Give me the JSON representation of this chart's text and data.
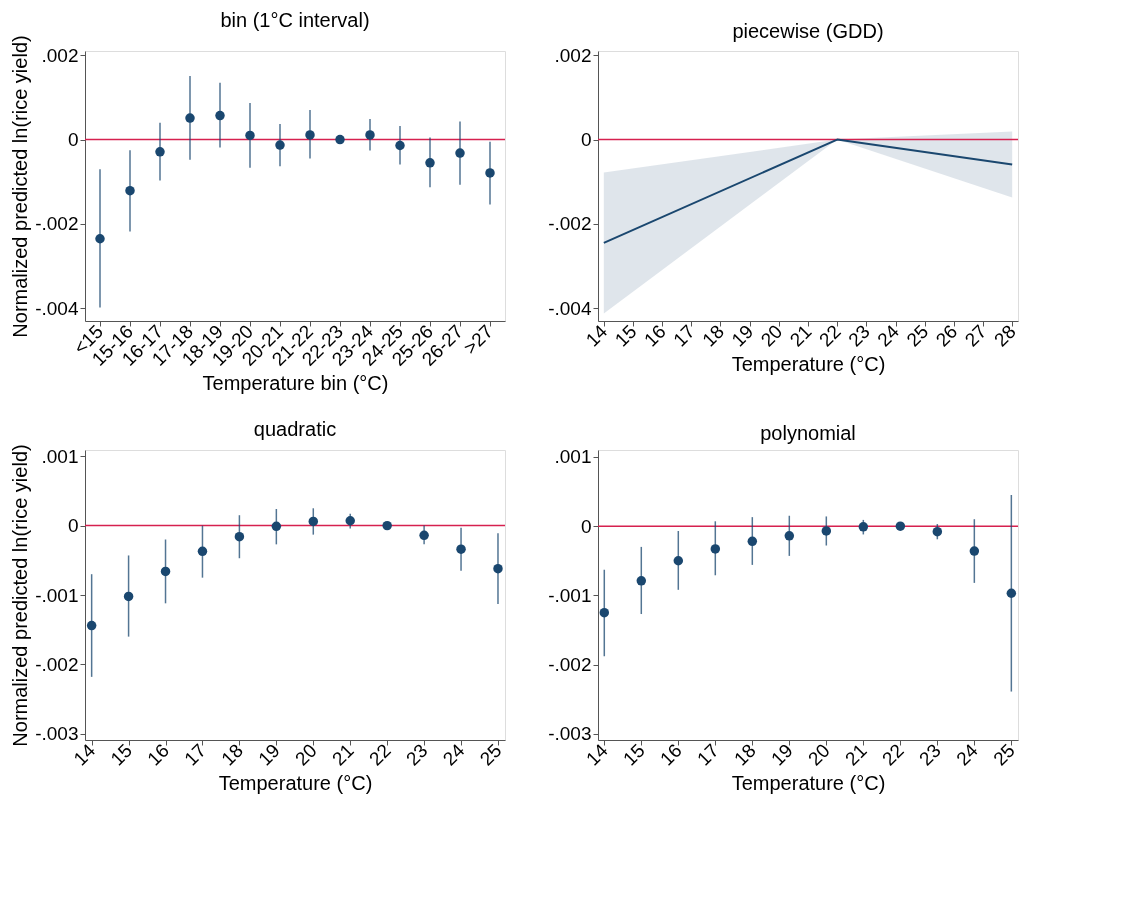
{
  "chart_data": [
    {
      "type": "scatter",
      "title": "bin (1°C interval)",
      "xlabel": "Temperature bin (°C)",
      "ylabel": "Normalized predicted ln(rice yield)",
      "categories": [
        "<15",
        "15-16",
        "16-17",
        "17-18",
        "18-19",
        "19-20",
        "20-21",
        "21-22",
        "22-23",
        "23-24",
        "24-25",
        "25-26",
        "26-27",
        ">27"
      ],
      "series": [
        {
          "color": "#1a476f",
          "values": [
            -0.00235,
            -0.00121,
            -0.00029,
            0.00051,
            0.00057,
            0.0001,
            -0.00013,
            0.00011,
            0,
            0.00011,
            -0.00014,
            -0.00055,
            -0.00032,
            -0.00079
          ],
          "errors": [
            [
              -0.00398,
              -0.0007
            ],
            [
              -0.00218,
              -0.00025
            ],
            [
              -0.00097,
              0.0004
            ],
            [
              -0.00048,
              0.00151
            ],
            [
              -0.00019,
              0.00135
            ],
            [
              -0.00067,
              0.00087
            ],
            [
              -0.00063,
              0.00037
            ],
            [
              -0.00045,
              0.0007
            ],
            null,
            [
              -0.00026,
              0.00049
            ],
            [
              -0.00059,
              0.00032
            ],
            [
              -0.00113,
              5e-05
            ],
            [
              -0.00107,
              0.00043
            ],
            [
              -0.00154,
              -5e-05
            ]
          ]
        }
      ],
      "ylim": [
        -0.0043,
        0.0021
      ],
      "yticks": [
        {
          "value": -0.004,
          "label": "-.004"
        },
        {
          "value": -0.002,
          "label": "-.002"
        },
        0,
        {
          "value": 0.002,
          "label": ".002"
        }
      ],
      "ref_lines": [
        {
          "axis": "y",
          "value": 0,
          "color": "#d6214f"
        }
      ],
      "marker": "circle",
      "grid": false
    },
    {
      "type": "line",
      "title": "piecewise (GDD)",
      "xlabel": "Temperature (°C)",
      "series": [
        {
          "color": "#1a476f",
          "x": [
            14,
            22,
            28
          ],
          "values": [
            -0.00245,
            0,
            -0.00059
          ],
          "lower": [
            -0.00412,
            0,
            -0.00137
          ],
          "upper": [
            -0.00078,
            0,
            0.00019
          ]
        }
      ],
      "xlim": [
        13.8,
        28.2
      ],
      "xticks": [
        14,
        15,
        16,
        17,
        18,
        19,
        20,
        21,
        22,
        23,
        24,
        25,
        26,
        27,
        28
      ],
      "ylim": [
        -0.0043,
        0.0021
      ],
      "yticks": [
        {
          "value": -0.004,
          "label": "-.004"
        },
        {
          "value": -0.002,
          "label": "-.002"
        },
        0,
        {
          "value": 0.002,
          "label": ".002"
        }
      ],
      "ref_lines": [
        {
          "axis": "y",
          "value": 0,
          "color": "#d6214f"
        }
      ],
      "marker": "none",
      "grid": false
    },
    {
      "type": "scatter",
      "title": "quadratic",
      "xlabel": "Temperature (°C)",
      "ylabel": "Normalized predicted ln(rice yield)",
      "x": [
        14,
        15,
        16,
        17,
        18,
        19,
        20,
        21,
        22,
        23,
        24,
        25
      ],
      "series": [
        {
          "color": "#1a476f",
          "values": [
            -0.00144,
            -0.00102,
            -0.00066,
            -0.00037,
            -0.00016,
            -1e-05,
            6e-05,
            7e-05,
            0,
            -0.00014,
            -0.00034,
            -0.00062
          ],
          "errors": [
            [
              -0.00218,
              -0.0007
            ],
            [
              -0.0016,
              -0.00043
            ],
            [
              -0.00112,
              -0.0002
            ],
            [
              -0.00075,
              0
            ],
            [
              -0.00047,
              0.00015
            ],
            [
              -0.00027,
              0.00024
            ],
            [
              -0.00013,
              0.00025
            ],
            [
              -4e-05,
              0.00017
            ],
            null,
            [
              -0.00027,
              0
            ],
            [
              -0.00065,
              -3e-05
            ],
            [
              -0.00113,
              -0.00011
            ]
          ]
        }
      ],
      "xlim": [
        13.82,
        25.19
      ],
      "xticks": [
        14,
        15,
        16,
        17,
        18,
        19,
        20,
        21,
        22,
        23,
        24,
        25
      ],
      "ylim": [
        -0.00309,
        0.00109
      ],
      "yticks": [
        {
          "value": -0.003,
          "label": "-.003"
        },
        {
          "value": -0.002,
          "label": "-.002"
        },
        {
          "value": -0.001,
          "label": "-.001"
        },
        0,
        {
          "value": 0.001,
          "label": ".001"
        }
      ],
      "ref_lines": [
        {
          "axis": "y",
          "value": 0,
          "color": "#d6214f"
        }
      ],
      "marker": "circle",
      "grid": false
    },
    {
      "type": "scatter",
      "title": "polynomial",
      "xlabel": "Temperature (°C)",
      "x": [
        14,
        15,
        16,
        17,
        18,
        19,
        20,
        21,
        22,
        23,
        24,
        25
      ],
      "series": [
        {
          "color": "#1a476f",
          "values": [
            -0.00125,
            -0.00079,
            -0.0005,
            -0.00033,
            -0.00022,
            -0.00014,
            -7e-05,
            -1e-05,
            0,
            -8e-05,
            -0.00036,
            -0.00097
          ],
          "errors": [
            [
              -0.00188,
              -0.00063
            ],
            [
              -0.00127,
              -0.0003
            ],
            [
              -0.00092,
              -7e-05
            ],
            [
              -0.00071,
              7e-05
            ],
            [
              -0.00056,
              0.00013
            ],
            [
              -0.00043,
              0.00015
            ],
            [
              -0.00028,
              0.00014
            ],
            [
              -0.00012,
              9e-05
            ],
            null,
            [
              -0.00019,
              3e-05
            ],
            [
              -0.00082,
              0.0001
            ],
            [
              -0.00239,
              0.00045
            ]
          ]
        }
      ],
      "xlim": [
        13.83,
        25.18
      ],
      "xticks": [
        14,
        15,
        16,
        17,
        18,
        19,
        20,
        21,
        22,
        23,
        24,
        25
      ],
      "ylim": [
        -0.00309,
        0.0011
      ],
      "yticks": [
        {
          "value": -0.003,
          "label": "-.003"
        },
        {
          "value": -0.002,
          "label": "-.002"
        },
        {
          "value": -0.001,
          "label": "-.001"
        },
        0,
        {
          "value": 0.001,
          "label": ".001"
        }
      ],
      "ref_lines": [
        {
          "axis": "y",
          "value": 0,
          "color": "#d6214f"
        }
      ],
      "marker": "circle",
      "grid": false
    }
  ]
}
